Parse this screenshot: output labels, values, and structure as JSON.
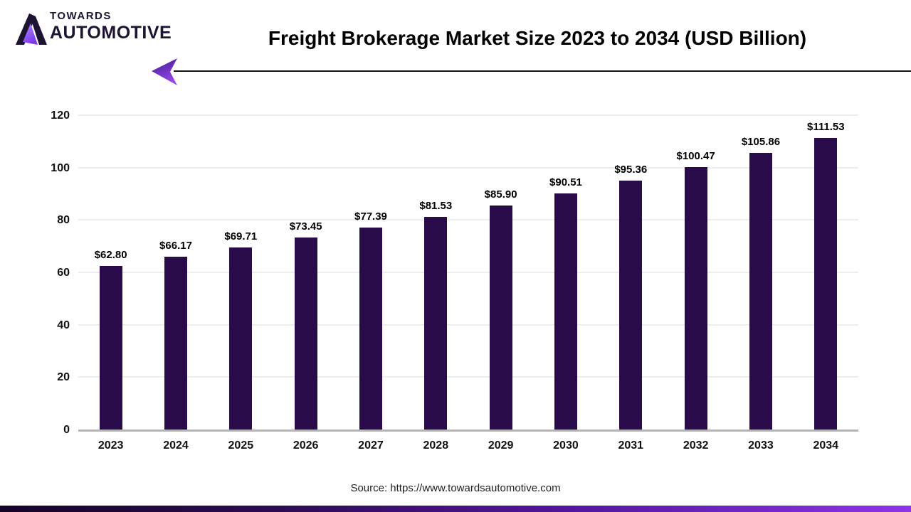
{
  "logo": {
    "brand_top": "TOWARDS",
    "brand_bottom": "AUTOMOTIVE"
  },
  "header": {
    "title": "Freight Brokerage Market Size 2023 to 2034 (USD Billion)"
  },
  "chart_data": {
    "type": "bar",
    "title": "Freight Brokerage Market Size 2023 to 2034 (USD Billion)",
    "categories": [
      "2023",
      "2024",
      "2025",
      "2026",
      "2027",
      "2028",
      "2029",
      "2030",
      "2031",
      "2032",
      "2033",
      "2034"
    ],
    "values": [
      62.8,
      66.17,
      69.71,
      73.45,
      77.39,
      81.53,
      85.9,
      90.51,
      95.36,
      100.47,
      105.86,
      111.53
    ],
    "value_labels": [
      "$62.80",
      "$66.17",
      "$69.71",
      "$73.45",
      "$77.39",
      "$81.53",
      "$85.90",
      "$90.51",
      "$95.36",
      "$100.47",
      "$105.86",
      "$111.53"
    ],
    "xlabel": "",
    "ylabel": "",
    "ylim": [
      0,
      120
    ],
    "yticks": [
      0,
      20,
      40,
      60,
      80,
      100,
      120
    ],
    "grid": true,
    "legend_position": "none",
    "bar_color": "#2a0b4a"
  },
  "footer": {
    "source": "Source: https://www.towardsautomotive.com"
  },
  "colors": {
    "accent_purple": "#8e34e6",
    "brand_dark": "#1d1433",
    "grid_line": "#ededed",
    "axis_line": "#b5b5b5"
  }
}
